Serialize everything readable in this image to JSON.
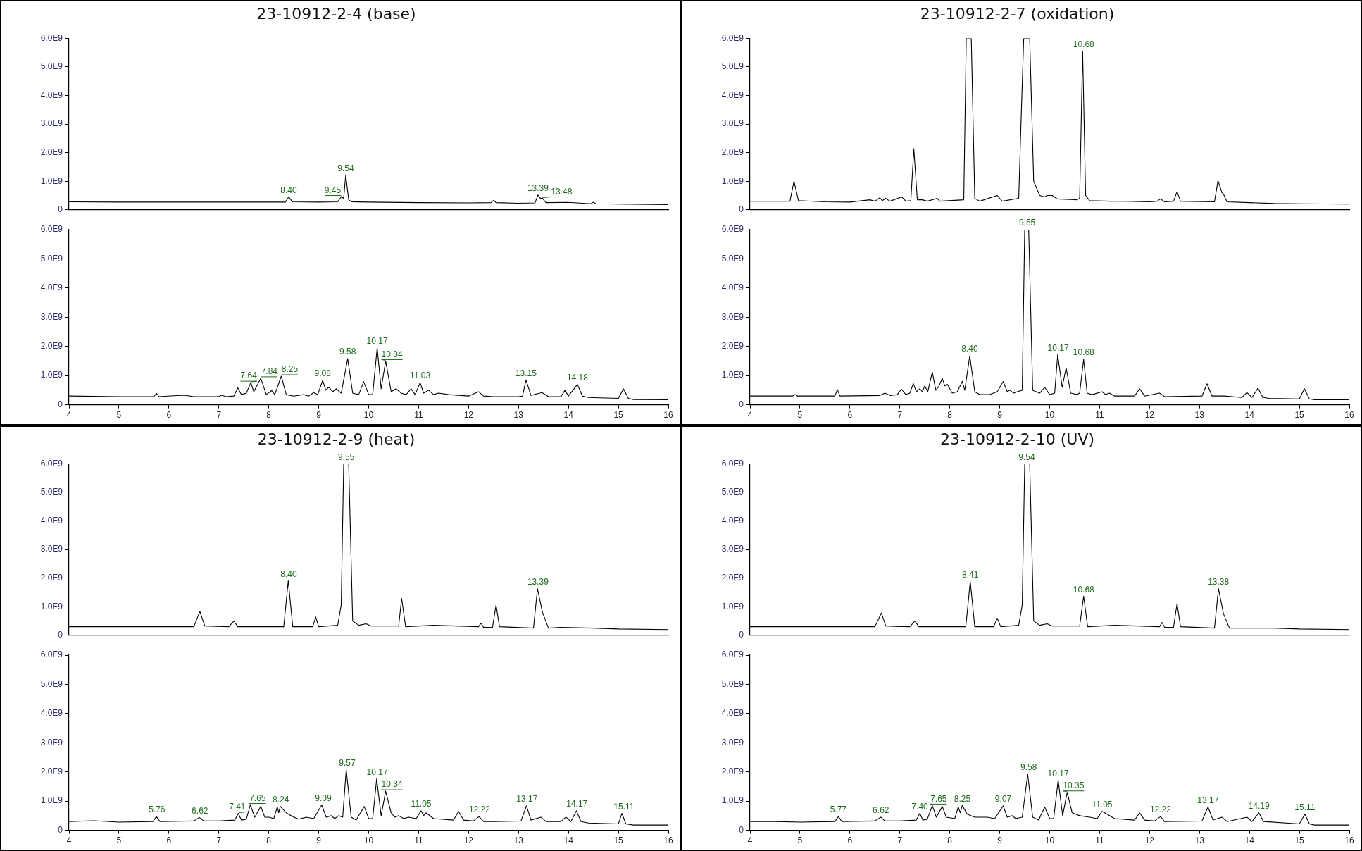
{
  "chart_data": [
    {
      "type": "line",
      "title": "23-10912-2-4 (base)",
      "color": "#000000",
      "marker": "none",
      "tick_labels": "y",
      "xlim": [
        4,
        16
      ],
      "ylim": [
        0,
        6000000000.0
      ],
      "yticks": [
        {
          "value": 0,
          "label": "0"
        },
        {
          "value": 1000000000.0,
          "label": "1.0E9"
        },
        {
          "value": 2000000000.0,
          "label": "2.0E9"
        },
        {
          "value": 3000000000.0,
          "label": "3.0E9"
        },
        {
          "value": 4000000000.0,
          "label": "4.0E9"
        },
        {
          "value": 5000000000.0,
          "label": "5.0E9"
        },
        {
          "value": 6000000000.0,
          "label": "6.0E9"
        }
      ],
      "x": [
        4,
        5,
        6,
        7,
        8,
        8.33,
        8.4,
        8.47,
        9,
        9.38,
        9.45,
        9.5,
        9.54,
        9.6,
        9.66,
        10,
        11,
        12,
        12.45,
        12.5,
        12.55,
        13,
        13.33,
        13.39,
        13.44,
        13.48,
        13.55,
        14,
        14.45,
        14.5,
        14.55,
        15,
        16
      ],
      "values": [
        280000000.0,
        270000000.0,
        270000000.0,
        270000000.0,
        270000000.0,
        270000000.0,
        450000000.0,
        280000000.0,
        270000000.0,
        280000000.0,
        450000000.0,
        400000000.0,
        1220000000.0,
        350000000.0,
        280000000.0,
        270000000.0,
        250000000.0,
        240000000.0,
        250000000.0,
        330000000.0,
        250000000.0,
        230000000.0,
        240000000.0,
        520000000.0,
        400000000.0,
        400000000.0,
        250000000.0,
        260000000.0,
        210000000.0,
        270000000.0,
        210000000.0,
        200000000.0,
        180000000.0
      ],
      "annotations": [
        {
          "text": "8.40",
          "x": 8.4,
          "y": 450000000.0
        },
        {
          "text": "9.45",
          "x": 9.45,
          "y": 450000000.0
        },
        {
          "text": "9.54",
          "x": 9.54,
          "y": 1220000000.0
        },
        {
          "text": "13.39",
          "x": 13.39,
          "y": 520000000.0
        },
        {
          "text": "13.48",
          "x": 13.48,
          "y": 400000000.0
        }
      ]
    },
    {
      "type": "line",
      "color": "#000000",
      "marker": "none",
      "xlim": [
        4,
        16
      ],
      "ylim": [
        0,
        6000000000.0
      ],
      "xticks": [
        4,
        5,
        6,
        7,
        8,
        9,
        10,
        11,
        12,
        13,
        14,
        15,
        16
      ],
      "yticks": [
        {
          "value": 0,
          "label": "0"
        },
        {
          "value": 1000000000.0,
          "label": "1.0E9"
        },
        {
          "value": 2000000000.0,
          "label": "2.0E9"
        },
        {
          "value": 3000000000.0,
          "label": "3.0E9"
        },
        {
          "value": 4000000000.0,
          "label": "4.0E9"
        },
        {
          "value": 5000000000.0,
          "label": "5.0E9"
        },
        {
          "value": 6000000000.0,
          "label": "6.0E9"
        }
      ],
      "x": [
        4,
        5,
        5.7,
        5.75,
        5.8,
        6.3,
        6.5,
        7,
        7.05,
        7.15,
        7.3,
        7.38,
        7.45,
        7.55,
        7.64,
        7.7,
        7.84,
        7.95,
        8.06,
        8.12,
        8.25,
        8.35,
        8.5,
        8.7,
        8.8,
        8.9,
        8.98,
        9.08,
        9.14,
        9.2,
        9.28,
        9.35,
        9.45,
        9.58,
        9.68,
        9.8,
        9.9,
        10,
        10.08,
        10.17,
        10.25,
        10.34,
        10.45,
        10.55,
        10.65,
        10.75,
        10.85,
        10.93,
        11.03,
        11.1,
        11.2,
        11.3,
        11.4,
        11.6,
        12,
        12.2,
        12.3,
        12.5,
        13,
        13.08,
        13.15,
        13.25,
        13.47,
        13.6,
        13.85,
        13.93,
        14,
        14.18,
        14.28,
        14.4,
        15,
        15.1,
        15.2,
        15.3,
        16
      ],
      "values": [
        300000000.0,
        280000000.0,
        280000000.0,
        390000000.0,
        280000000.0,
        330000000.0,
        280000000.0,
        280000000.0,
        330000000.0,
        280000000.0,
        300000000.0,
        580000000.0,
        350000000.0,
        400000000.0,
        760000000.0,
        450000000.0,
        910000000.0,
        350000000.0,
        490000000.0,
        350000000.0,
        980000000.0,
        350000000.0,
        300000000.0,
        350000000.0,
        300000000.0,
        420000000.0,
        350000000.0,
        840000000.0,
        500000000.0,
        600000000.0,
        450000000.0,
        550000000.0,
        400000000.0,
        1580000000.0,
        400000000.0,
        350000000.0,
        790000000.0,
        350000000.0,
        350000000.0,
        1950000000.0,
        550000000.0,
        1500000000.0,
        450000000.0,
        550000000.0,
        400000000.0,
        350000000.0,
        550000000.0,
        350000000.0,
        760000000.0,
        400000000.0,
        500000000.0,
        350000000.0,
        400000000.0,
        350000000.0,
        300000000.0,
        450000000.0,
        300000000.0,
        280000000.0,
        280000000.0,
        300000000.0,
        850000000.0,
        320000000.0,
        420000000.0,
        280000000.0,
        280000000.0,
        500000000.0,
        300000000.0,
        700000000.0,
        300000000.0,
        250000000.0,
        220000000.0,
        550000000.0,
        220000000.0,
        180000000.0,
        170000000.0
      ],
      "annotations": [
        {
          "text": "7.64",
          "x": 7.64,
          "y": 760000000.0
        },
        {
          "text": "7.84",
          "x": 7.84,
          "y": 910000000.0
        },
        {
          "text": "8.25",
          "x": 8.25,
          "y": 980000000.0
        },
        {
          "text": "9.08",
          "x": 9.08,
          "y": 840000000.0
        },
        {
          "text": "9.58",
          "x": 9.58,
          "y": 1580000000.0
        },
        {
          "text": "10.17",
          "x": 10.17,
          "y": 1950000000.0
        },
        {
          "text": "10.34",
          "x": 10.34,
          "y": 1500000000.0
        },
        {
          "text": "11.03",
          "x": 11.03,
          "y": 760000000.0
        },
        {
          "text": "13.15",
          "x": 13.15,
          "y": 850000000.0
        },
        {
          "text": "14.18",
          "x": 14.18,
          "y": 700000000.0
        }
      ]
    },
    {
      "type": "line",
      "title": "23-10912-2-7 (oxidation)",
      "color": "#000000",
      "marker": "none",
      "tick_labels": "y",
      "xlim": [
        4,
        16
      ],
      "ylim": [
        0,
        6000000000.0
      ],
      "yticks": [
        {
          "value": 0,
          "label": "0"
        },
        {
          "value": 1000000000.0,
          "label": "1.0E9"
        },
        {
          "value": 2000000000.0,
          "label": "2.0E9"
        },
        {
          "value": 3000000000.0,
          "label": "3.0E9"
        },
        {
          "value": 4000000000.0,
          "label": "4.0E9"
        },
        {
          "value": 5000000000.0,
          "label": "5.0E9"
        },
        {
          "value": 6000000000.0,
          "label": "6.0E9"
        }
      ],
      "x": [
        4,
        4.8,
        4.88,
        4.97,
        5.5,
        6,
        6.4,
        6.5,
        6.6,
        6.65,
        6.72,
        6.8,
        7.04,
        7.12,
        7.22,
        7.28,
        7.35,
        7.45,
        7.55,
        7.75,
        7.8,
        8.28,
        8.33,
        8.43,
        8.5,
        8.6,
        8.95,
        9.05,
        9.38,
        9.43,
        9.48,
        9.6,
        9.68,
        9.8,
        9.9,
        9.95,
        10.05,
        10.15,
        10.55,
        10.6,
        10.66,
        10.72,
        10.8,
        11.2,
        11.5,
        12,
        12.15,
        12.22,
        12.3,
        12.48,
        12.55,
        12.62,
        13.3,
        13.37,
        13.45,
        13.48,
        13.55,
        14,
        14.5,
        15,
        16
      ],
      "values": [
        300000000.0,
        300000000.0,
        1000000000.0,
        320000000.0,
        280000000.0,
        270000000.0,
        350000000.0,
        300000000.0,
        420000000.0,
        320000000.0,
        400000000.0,
        300000000.0,
        450000000.0,
        300000000.0,
        320000000.0,
        2140000000.0,
        350000000.0,
        350000000.0,
        300000000.0,
        400000000.0,
        300000000.0,
        350000000.0,
        6000000000.0,
        6000000000.0,
        400000000.0,
        300000000.0,
        500000000.0,
        300000000.0,
        400000000.0,
        3270000000.0,
        6000000000.0,
        6000000000.0,
        1000000000.0,
        500000000.0,
        450000000.0,
        500000000.0,
        500000000.0,
        380000000.0,
        350000000.0,
        400000000.0,
        5550000000.0,
        500000000.0,
        320000000.0,
        300000000.0,
        300000000.0,
        280000000.0,
        300000000.0,
        380000000.0,
        280000000.0,
        300000000.0,
        640000000.0,
        300000000.0,
        280000000.0,
        1020000000.0,
        600000000.0,
        550000000.0,
        280000000.0,
        250000000.0,
        220000000.0,
        210000000.0,
        200000000.0
      ],
      "annotations": [
        {
          "text": "10.68",
          "x": 10.68,
          "y": 5550000000.0
        }
      ]
    },
    {
      "type": "line",
      "color": "#000000",
      "marker": "none",
      "xlim": [
        4,
        16
      ],
      "ylim": [
        0,
        6000000000.0
      ],
      "xticks": [
        4,
        5,
        6,
        7,
        8,
        9,
        10,
        11,
        12,
        13,
        14,
        15,
        16
      ],
      "yticks": [
        {
          "value": 0,
          "label": "0"
        },
        {
          "value": 1000000000.0,
          "label": "1.0E9"
        },
        {
          "value": 2000000000.0,
          "label": "2.0E9"
        },
        {
          "value": 3000000000.0,
          "label": "3.0E9"
        },
        {
          "value": 4000000000.0,
          "label": "4.0E9"
        },
        {
          "value": 5000000000.0,
          "label": "5.0E9"
        },
        {
          "value": 6000000000.0,
          "label": "6.0E9"
        }
      ],
      "x": [
        4,
        4.85,
        4.9,
        4.95,
        5.7,
        5.75,
        5.8,
        6.6,
        6.7,
        6.8,
        6.95,
        7.03,
        7.12,
        7.2,
        7.27,
        7.33,
        7.4,
        7.45,
        7.5,
        7.56,
        7.65,
        7.72,
        7.77,
        7.85,
        7.9,
        7.95,
        8.05,
        8.15,
        8.25,
        8.3,
        8.4,
        8.5,
        8.6,
        8.8,
        8.95,
        9.07,
        9.15,
        9.2,
        9.28,
        9.35,
        9.45,
        9.5,
        9.58,
        9.66,
        9.8,
        9.9,
        10.0,
        10.1,
        10.16,
        10.25,
        10.33,
        10.42,
        10.55,
        10.6,
        10.68,
        10.75,
        10.85,
        11.05,
        11.12,
        11.2,
        11.3,
        11.7,
        11.8,
        11.9,
        12.2,
        12.3,
        13.05,
        13.15,
        13.25,
        13.5,
        13.85,
        13.95,
        14.05,
        14.17,
        14.27,
        14.4,
        15,
        15.1,
        15.2,
        15.3,
        16
      ],
      "values": [
        300000000.0,
        300000000.0,
        350000000.0,
        300000000.0,
        300000000.0,
        520000000.0,
        300000000.0,
        320000000.0,
        400000000.0,
        320000000.0,
        350000000.0,
        540000000.0,
        350000000.0,
        400000000.0,
        730000000.0,
        450000000.0,
        550000000.0,
        450000000.0,
        650000000.0,
        450000000.0,
        1120000000.0,
        500000000.0,
        600000000.0,
        900000000.0,
        650000000.0,
        700000000.0,
        400000000.0,
        450000000.0,
        800000000.0,
        500000000.0,
        1680000000.0,
        450000000.0,
        350000000.0,
        350000000.0,
        450000000.0,
        800000000.0,
        450000000.0,
        500000000.0,
        400000000.0,
        450000000.0,
        500000000.0,
        6000000000.0,
        6000000000.0,
        500000000.0,
        400000000.0,
        600000000.0,
        350000000.0,
        400000000.0,
        1720000000.0,
        600000000.0,
        1270000000.0,
        400000000.0,
        350000000.0,
        400000000.0,
        1560000000.0,
        400000000.0,
        350000000.0,
        450000000.0,
        350000000.0,
        400000000.0,
        300000000.0,
        300000000.0,
        550000000.0,
        300000000.0,
        400000000.0,
        280000000.0,
        300000000.0,
        720000000.0,
        300000000.0,
        300000000.0,
        250000000.0,
        420000000.0,
        250000000.0,
        570000000.0,
        250000000.0,
        220000000.0,
        200000000.0,
        550000000.0,
        200000000.0,
        170000000.0,
        170000000.0
      ],
      "annotations": [
        {
          "text": "8.40",
          "x": 8.4,
          "y": 1680000000.0
        },
        {
          "text": "9.55",
          "x": 9.55,
          "y": 6000000000.0
        },
        {
          "text": "10.17",
          "x": 10.17,
          "y": 1720000000.0
        },
        {
          "text": "10.68",
          "x": 10.68,
          "y": 1560000000.0
        }
      ]
    },
    {
      "type": "line",
      "title": "23-10912-2-9 (heat)",
      "color": "#000000",
      "marker": "none",
      "tick_labels": "y",
      "xlim": [
        4,
        16
      ],
      "ylim": [
        0,
        6000000000.0
      ],
      "yticks": [
        {
          "value": 0,
          "label": "0"
        },
        {
          "value": 1000000000.0,
          "label": "1.0E9"
        },
        {
          "value": 2000000000.0,
          "label": "2.0E9"
        },
        {
          "value": 3000000000.0,
          "label": "3.0E9"
        },
        {
          "value": 4000000000.0,
          "label": "4.0E9"
        },
        {
          "value": 5000000000.0,
          "label": "5.0E9"
        },
        {
          "value": 6000000000.0,
          "label": "6.0E9"
        }
      ],
      "x": [
        4,
        5,
        6,
        6.5,
        6.62,
        6.72,
        7.2,
        7.3,
        7.38,
        8.3,
        8.39,
        8.48,
        8.88,
        8.94,
        9.0,
        9.38,
        9.45,
        9.5,
        9.6,
        9.68,
        9.8,
        9.95,
        10.05,
        10.6,
        10.66,
        10.74,
        11.3,
        12.2,
        12.25,
        12.3,
        12.48,
        12.55,
        12.62,
        13.3,
        13.38,
        13.48,
        13.6,
        13.85,
        14.5,
        15,
        16
      ],
      "values": [
        300000000.0,
        300000000.0,
        300000000.0,
        300000000.0,
        840000000.0,
        320000000.0,
        300000000.0,
        500000000.0,
        300000000.0,
        300000000.0,
        1910000000.0,
        300000000.0,
        300000000.0,
        640000000.0,
        300000000.0,
        350000000.0,
        1060000000.0,
        6000000000.0,
        6000000000.0,
        500000000.0,
        350000000.0,
        400000000.0,
        320000000.0,
        320000000.0,
        1290000000.0,
        300000000.0,
        350000000.0,
        300000000.0,
        430000000.0,
        280000000.0,
        280000000.0,
        1060000000.0,
        300000000.0,
        250000000.0,
        1630000000.0,
        800000000.0,
        250000000.0,
        280000000.0,
        250000000.0,
        220000000.0,
        200000000.0
      ],
      "annotations": [
        {
          "text": "8.40",
          "x": 8.4,
          "y": 1910000000.0
        },
        {
          "text": "9.55",
          "x": 9.55,
          "y": 6000000000.0
        },
        {
          "text": "13.39",
          "x": 13.39,
          "y": 1630000000.0
        }
      ]
    },
    {
      "type": "line",
      "color": "#000000",
      "marker": "none",
      "xlim": [
        4,
        16
      ],
      "ylim": [
        0,
        6000000000.0
      ],
      "xticks": [
        4,
        5,
        6,
        7,
        8,
        9,
        10,
        11,
        12,
        13,
        14,
        15,
        16
      ],
      "yticks": [
        {
          "value": 0,
          "label": "0"
        },
        {
          "value": 1000000000.0,
          "label": "1.0E9"
        },
        {
          "value": 2000000000.0,
          "label": "2.0E9"
        },
        {
          "value": 3000000000.0,
          "label": "3.0E9"
        },
        {
          "value": 4000000000.0,
          "label": "4.0E9"
        },
        {
          "value": 5000000000.0,
          "label": "5.0E9"
        },
        {
          "value": 6000000000.0,
          "label": "6.0E9"
        }
      ],
      "x": [
        4,
        4.5,
        5,
        5.68,
        5.75,
        5.82,
        6.5,
        6.61,
        6.7,
        7,
        7.32,
        7.39,
        7.45,
        7.55,
        7.63,
        7.72,
        7.84,
        7.92,
        8.0,
        8.1,
        8.17,
        8.2,
        8.23,
        8.35,
        8.5,
        8.6,
        8.75,
        8.9,
        9.06,
        9.15,
        9.25,
        9.32,
        9.4,
        9.48,
        9.55,
        9.65,
        9.75,
        9.91,
        10.0,
        10.08,
        10.16,
        10.25,
        10.34,
        10.45,
        10.52,
        10.6,
        10.7,
        10.8,
        10.95,
        11.05,
        11.1,
        11.15,
        11.3,
        11.7,
        11.8,
        11.9,
        12.1,
        12.21,
        12.3,
        12.5,
        13.05,
        13.16,
        13.25,
        13.45,
        13.55,
        13.85,
        13.95,
        14.05,
        14.16,
        14.25,
        14.4,
        15,
        15.07,
        15.15,
        15.3,
        16
      ],
      "values": [
        300000000.0,
        330000000.0,
        280000000.0,
        300000000.0,
        470000000.0,
        300000000.0,
        320000000.0,
        440000000.0,
        320000000.0,
        320000000.0,
        350000000.0,
        580000000.0,
        350000000.0,
        380000000.0,
        870000000.0,
        450000000.0,
        820000000.0,
        450000000.0,
        450000000.0,
        400000000.0,
        800000000.0,
        600000000.0,
        820000000.0,
        600000000.0,
        450000000.0,
        380000000.0,
        450000000.0,
        400000000.0,
        870000000.0,
        450000000.0,
        500000000.0,
        400000000.0,
        500000000.0,
        450000000.0,
        2080000000.0,
        450000000.0,
        350000000.0,
        820000000.0,
        400000000.0,
        400000000.0,
        1760000000.0,
        500000000.0,
        1340000000.0,
        600000000.0,
        450000000.0,
        500000000.0,
        400000000.0,
        450000000.0,
        400000000.0,
        670000000.0,
        500000000.0,
        600000000.0,
        400000000.0,
        350000000.0,
        650000000.0,
        350000000.0,
        320000000.0,
        470000000.0,
        300000000.0,
        300000000.0,
        320000000.0,
        840000000.0,
        350000000.0,
        450000000.0,
        300000000.0,
        300000000.0,
        450000000.0,
        300000000.0,
        670000000.0,
        300000000.0,
        250000000.0,
        220000000.0,
        580000000.0,
        220000000.0,
        180000000.0,
        180000000.0
      ],
      "annotations": [
        {
          "text": "5.76",
          "x": 5.76,
          "y": 470000000.0
        },
        {
          "text": "6.62",
          "x": 6.62,
          "y": 440000000.0
        },
        {
          "text": "7.41",
          "x": 7.41,
          "y": 580000000.0
        },
        {
          "text": "7.65",
          "x": 7.65,
          "y": 870000000.0
        },
        {
          "text": "8.24",
          "x": 8.24,
          "y": 820000000.0
        },
        {
          "text": "9.09",
          "x": 9.09,
          "y": 870000000.0
        },
        {
          "text": "9.57",
          "x": 9.57,
          "y": 2080000000.0
        },
        {
          "text": "10.17",
          "x": 10.17,
          "y": 1760000000.0
        },
        {
          "text": "10.34",
          "x": 10.34,
          "y": 1340000000.0
        },
        {
          "text": "11.05",
          "x": 11.05,
          "y": 670000000.0
        },
        {
          "text": "12.22",
          "x": 12.22,
          "y": 470000000.0
        },
        {
          "text": "13.17",
          "x": 13.17,
          "y": 840000000.0
        },
        {
          "text": "14.17",
          "x": 14.17,
          "y": 670000000.0
        },
        {
          "text": "15.11",
          "x": 15.11,
          "y": 580000000.0
        }
      ]
    },
    {
      "type": "line",
      "title": "23-10912-2-10 (UV)",
      "color": "#000000",
      "marker": "none",
      "tick_labels": "y",
      "xlim": [
        4,
        16
      ],
      "ylim": [
        0,
        6000000000.0
      ],
      "yticks": [
        {
          "value": 0,
          "label": "0"
        },
        {
          "value": 1000000000.0,
          "label": "1.0E9"
        },
        {
          "value": 2000000000.0,
          "label": "2.0E9"
        },
        {
          "value": 3000000000.0,
          "label": "3.0E9"
        },
        {
          "value": 4000000000.0,
          "label": "4.0E9"
        },
        {
          "value": 5000000000.0,
          "label": "5.0E9"
        },
        {
          "value": 6000000000.0,
          "label": "6.0E9"
        }
      ],
      "x": [
        4,
        5,
        6,
        6.5,
        6.63,
        6.72,
        7.2,
        7.3,
        7.38,
        8.32,
        8.41,
        8.5,
        8.88,
        8.95,
        9.02,
        9.38,
        9.45,
        9.5,
        9.6,
        9.68,
        9.8,
        9.95,
        10.05,
        10.6,
        10.68,
        10.76,
        11.3,
        12.2,
        12.25,
        12.3,
        12.48,
        12.55,
        12.62,
        13.3,
        13.38,
        13.48,
        13.6,
        14.5,
        15,
        16
      ],
      "values": [
        300000000.0,
        300000000.0,
        300000000.0,
        300000000.0,
        780000000.0,
        320000000.0,
        300000000.0,
        500000000.0,
        300000000.0,
        300000000.0,
        1880000000.0,
        300000000.0,
        300000000.0,
        600000000.0,
        300000000.0,
        350000000.0,
        1060000000.0,
        6000000000.0,
        6000000000.0,
        500000000.0,
        350000000.0,
        400000000.0,
        320000000.0,
        320000000.0,
        1370000000.0,
        300000000.0,
        350000000.0,
        300000000.0,
        450000000.0,
        280000000.0,
        280000000.0,
        1110000000.0,
        300000000.0,
        250000000.0,
        1630000000.0,
        750000000.0,
        250000000.0,
        250000000.0,
        220000000.0,
        200000000.0
      ],
      "annotations": [
        {
          "text": "8.41",
          "x": 8.41,
          "y": 1880000000.0
        },
        {
          "text": "9.54",
          "x": 9.54,
          "y": 6000000000.0
        },
        {
          "text": "10.68",
          "x": 10.68,
          "y": 1370000000.0
        },
        {
          "text": "13.38",
          "x": 13.38,
          "y": 1630000000.0
        }
      ]
    },
    {
      "type": "line",
      "color": "#000000",
      "marker": "none",
      "xlim": [
        4,
        16
      ],
      "ylim": [
        0,
        6000000000.0
      ],
      "xticks": [
        4,
        5,
        6,
        7,
        8,
        9,
        10,
        11,
        12,
        13,
        14,
        15,
        16
      ],
      "yticks": [
        {
          "value": 0,
          "label": "0"
        },
        {
          "value": 1000000000.0,
          "label": "1.0E9"
        },
        {
          "value": 2000000000.0,
          "label": "2.0E9"
        },
        {
          "value": 3000000000.0,
          "label": "3.0E9"
        },
        {
          "value": 4000000000.0,
          "label": "4.0E9"
        },
        {
          "value": 5000000000.0,
          "label": "5.0E9"
        },
        {
          "value": 6000000000.0,
          "label": "6.0E9"
        }
      ],
      "x": [
        4,
        4.5,
        5,
        5.7,
        5.77,
        5.84,
        6.5,
        6.62,
        6.7,
        7,
        7.33,
        7.4,
        7.46,
        7.55,
        7.65,
        7.73,
        7.85,
        7.93,
        8.1,
        8.17,
        8.21,
        8.25,
        8.35,
        8.5,
        8.75,
        8.9,
        9.07,
        9.15,
        9.25,
        9.32,
        9.45,
        9.56,
        9.66,
        9.78,
        9.9,
        10.0,
        10.08,
        10.17,
        10.26,
        10.35,
        10.45,
        10.6,
        10.8,
        10.95,
        11.05,
        11.15,
        11.3,
        11.7,
        11.8,
        11.9,
        12.1,
        12.22,
        12.3,
        13.05,
        13.17,
        13.27,
        13.45,
        13.55,
        13.95,
        14.05,
        14.19,
        14.28,
        15,
        15.11,
        15.2,
        15.3,
        16
      ],
      "values": [
        300000000.0,
        300000000.0,
        280000000.0,
        300000000.0,
        470000000.0,
        300000000.0,
        320000000.0,
        450000000.0,
        320000000.0,
        320000000.0,
        350000000.0,
        580000000.0,
        350000000.0,
        380000000.0,
        850000000.0,
        450000000.0,
        820000000.0,
        450000000.0,
        400000000.0,
        800000000.0,
        600000000.0,
        850000000.0,
        550000000.0,
        450000000.0,
        450000000.0,
        400000000.0,
        840000000.0,
        450000000.0,
        500000000.0,
        400000000.0,
        450000000.0,
        1920000000.0,
        450000000.0,
        350000000.0,
        800000000.0,
        400000000.0,
        400000000.0,
        1720000000.0,
        500000000.0,
        1300000000.0,
        600000000.0,
        500000000.0,
        450000000.0,
        400000000.0,
        650000000.0,
        550000000.0,
        400000000.0,
        350000000.0,
        600000000.0,
        350000000.0,
        320000000.0,
        470000000.0,
        300000000.0,
        320000000.0,
        800000000.0,
        350000000.0,
        450000000.0,
        300000000.0,
        450000000.0,
        300000000.0,
        600000000.0,
        300000000.0,
        220000000.0,
        550000000.0,
        220000000.0,
        180000000.0,
        180000000.0
      ],
      "annotations": [
        {
          "text": "5.77",
          "x": 5.77,
          "y": 470000000.0
        },
        {
          "text": "6.62",
          "x": 6.62,
          "y": 450000000.0
        },
        {
          "text": "7.40",
          "x": 7.4,
          "y": 580000000.0
        },
        {
          "text": "7.65",
          "x": 7.65,
          "y": 850000000.0
        },
        {
          "text": "8.25",
          "x": 8.25,
          "y": 850000000.0
        },
        {
          "text": "9.07",
          "x": 9.07,
          "y": 840000000.0
        },
        {
          "text": "9.58",
          "x": 9.58,
          "y": 1920000000.0
        },
        {
          "text": "10.17",
          "x": 10.17,
          "y": 1720000000.0
        },
        {
          "text": "10.35",
          "x": 10.35,
          "y": 1300000000.0
        },
        {
          "text": "11.05",
          "x": 11.05,
          "y": 650000000.0
        },
        {
          "text": "12.22",
          "x": 12.22,
          "y": 470000000.0
        },
        {
          "text": "13.17",
          "x": 13.17,
          "y": 800000000.0
        },
        {
          "text": "14.19",
          "x": 14.19,
          "y": 600000000.0
        },
        {
          "text": "15.11",
          "x": 15.11,
          "y": 550000000.0
        }
      ]
    }
  ]
}
